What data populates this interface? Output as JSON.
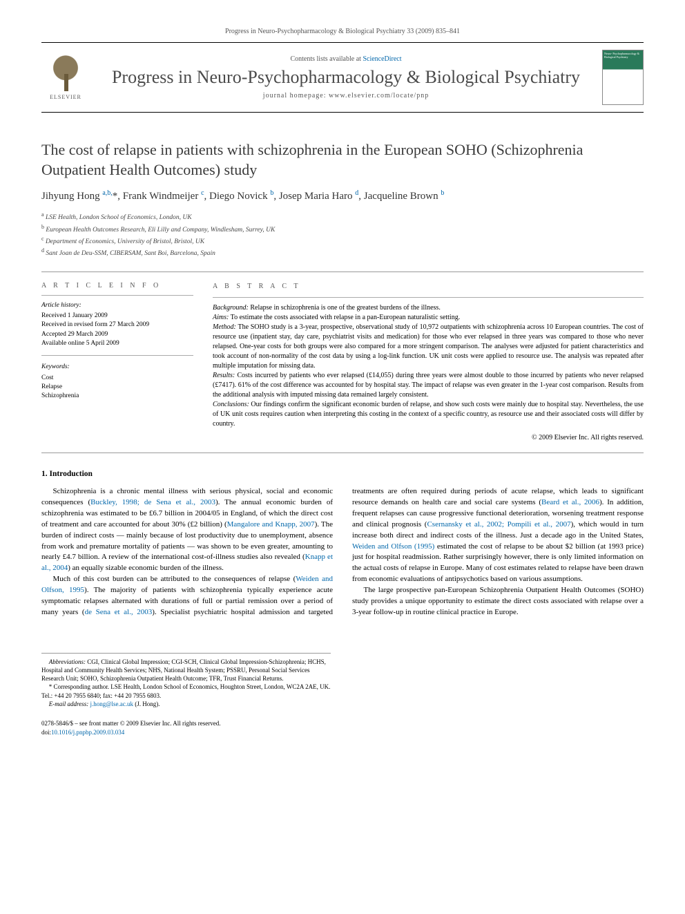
{
  "header": {
    "running_head": "Progress in Neuro-Psychopharmacology & Biological Psychiatry 33 (2009) 835–841"
  },
  "masthead": {
    "contents_prefix": "Contents lists available at ",
    "contents_link_text": "ScienceDirect",
    "journal_name": "Progress in Neuro-Psychopharmacology & Biological Psychiatry",
    "homepage_label": "journal homepage: www.elsevier.com/locate/pnp",
    "publisher_label": "ELSEVIER",
    "cover_text": "Neuro-\nPsychopharmacology\n& Biological Psychiatry"
  },
  "article": {
    "title": "The cost of relapse in patients with schizophrenia in the European SOHO (Schizophrenia Outpatient Health Outcomes) study",
    "authors_html": "Jihyung Hong <sup>a,b,</sup>*, Frank Windmeijer <sup>c</sup>, Diego Novick <sup>b</sup>, Josep Maria Haro <sup>d</sup>, Jacqueline Brown <sup>b</sup>",
    "affiliations": [
      {
        "sup": "a",
        "text": "LSE Health, London School of Economics, London, UK"
      },
      {
        "sup": "b",
        "text": "European Health Outcomes Research, Eli Lilly and Company, Windlesham, Surrey, UK"
      },
      {
        "sup": "c",
        "text": "Department of Economics, University of Bristol, Bristol, UK"
      },
      {
        "sup": "d",
        "text": "Sant Joan de Deu-SSM, CIBERSAM, Sant Boi, Barcelona, Spain"
      }
    ]
  },
  "article_info": {
    "heading": "A R T I C L E   I N F O",
    "history_heading": "Article history:",
    "history_lines": [
      "Received 1 January 2009",
      "Received in revised form 27 March 2009",
      "Accepted 29 March 2009",
      "Available online 5 April 2009"
    ],
    "keywords_heading": "Keywords:",
    "keywords": [
      "Cost",
      "Relapse",
      "Schizophrenia"
    ]
  },
  "abstract": {
    "heading": "A B S T R A C T",
    "segments": [
      {
        "label": "Background:",
        "text": " Relapse in schizophrenia is one of the greatest burdens of the illness."
      },
      {
        "label": "Aims:",
        "text": " To estimate the costs associated with relapse in a pan-European naturalistic setting."
      },
      {
        "label": "Method:",
        "text": " The SOHO study is a 3-year, prospective, observational study of 10,972 outpatients with schizophrenia across 10 European countries. The cost of resource use (inpatient stay, day care, psychiatrist visits and medication) for those who ever relapsed in three years was compared to those who never relapsed. One-year costs for both groups were also compared for a more stringent comparison. The analyses were adjusted for patient characteristics and took account of non-normality of the cost data by using a log-link function. UK unit costs were applied to resource use. The analysis was repeated after multiple imputation for missing data."
      },
      {
        "label": "Results:",
        "text": " Costs incurred by patients who ever relapsed (£14,055) during three years were almost double to those incurred by patients who never relapsed (£7417). 61% of the cost difference was accounted for by hospital stay. The impact of relapse was even greater in the 1-year cost comparison. Results from the additional analysis with imputed missing data remained largely consistent."
      },
      {
        "label": "Conclusions:",
        "text": " Our findings confirm the significant economic burden of relapse, and show such costs were mainly due to hospital stay. Nevertheless, the use of UK unit costs requires caution when interpreting this costing in the context of a specific country, as resource use and their associated costs will differ by country."
      }
    ],
    "copyright": "© 2009 Elsevier Inc. All rights reserved."
  },
  "introduction": {
    "heading": "1. Introduction",
    "para1_pre": "Schizophrenia is a chronic mental illness with serious physical, social and economic consequences (",
    "para1_link1": "Buckley, 1998; de Sena et al., 2003",
    "para1_mid1": "). The annual economic burden of schizophrenia was estimated to be £6.7 billion in 2004/05 in England, of which the direct cost of treatment and care accounted for about 30% (£2 billion) (",
    "para1_link2": "Mangalore and Knapp, 2007",
    "para1_mid2": "). The burden of indirect costs — mainly because of lost productivity due to unemployment, absence from work and premature mortality of patients — was shown to be even greater, amounting to nearly £4.7 billion. A review of the international cost-of-illness studies also revealed (",
    "para1_link3": "Knapp et al., 2004",
    "para1_post": ") an equally sizable economic burden of the illness.",
    "para2_pre": "Much of this cost burden can be attributed to the consequences of relapse (",
    "para2_link1": "Weiden and Olfson, 1995",
    "para2_mid1": "). The majority of patients with schizophrenia typically experience acute symptomatic relapses alternated with durations of full or partial remission over a period of many years (",
    "para2_link2": "de Sena et al., 2003",
    "para2_mid2": "). Specialist psychiatric hospital admission and targeted treatments are often required during periods of acute relapse, which leads to significant resource demands on health care and social care systems (",
    "para2_link3": "Beard et al., 2006",
    "para2_mid3": "). In addition, frequent relapses can cause progressive functional deterioration, worsening treatment response and clinical prognosis (",
    "para2_link4": "Csernansky et al., 2002; Pompili et al., 2007",
    "para2_mid4": "), which would in turn increase both direct and indirect costs of the illness. Just a decade ago in the United States, ",
    "para2_link5": "Weiden and Olfson (1995)",
    "para2_post": " estimated the cost of relapse to be about $2 billion (at 1993 price) just for hospital readmission. Rather surprisingly however, there is only limited information on the actual costs of relapse in Europe. Many of cost estimates related to relapse have been drawn from economic evaluations of antipsychotics based on various assumptions.",
    "para3": "The large prospective pan-European Schizophrenia Outpatient Health Outcomes (SOHO) study provides a unique opportunity to estimate the direct costs associated with relapse over a 3-year follow-up in routine clinical practice in Europe."
  },
  "footnotes": {
    "abbrev_label": "Abbreviations:",
    "abbrev_text": " CGI, Clinical Global Impression; CGI-SCH, Clinical Global Impression-Schizophrenia; HCHS, Hospital and Community Health Services; NHS, National Health System; PSSRU, Personal Social Services Research Unit; SOHO, Schizophrenia Outpatient Health Outcome; TFR, Trust Financial Returns.",
    "corresponding": "* Corresponding author. LSE Health, London School of Economics, Houghton Street, London, WC2A 2AE, UK. Tel.: +44 20 7955 6840; fax: +44 20 7955 6803.",
    "email_label": "E-mail address: ",
    "email_link": "j.hong@lse.ac.uk",
    "email_owner": " (J. Hong)."
  },
  "copyright_footer": {
    "line1": "0278-5846/$ – see front matter © 2009 Elsevier Inc. All rights reserved.",
    "doi_label": "doi:",
    "doi_link": "10.1016/j.pnpbp.2009.03.034"
  },
  "colors": {
    "link": "#0066aa",
    "text": "#000000",
    "muted": "#555555"
  },
  "typography": {
    "body_fontsize_pt": 11,
    "title_fontsize_pt": 22,
    "journal_fontsize_pt": 26,
    "small_fontsize_pt": 10,
    "footnote_fontsize_pt": 9
  }
}
